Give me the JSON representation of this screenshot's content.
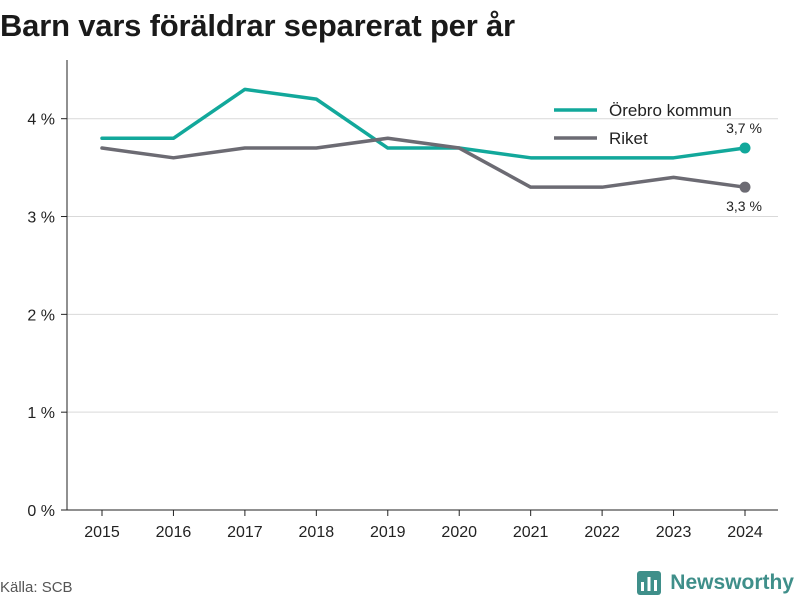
{
  "title": "Barn vars föräldrar separerat per år",
  "source": "Källa: SCB",
  "brand": "Newsworthy",
  "colors": {
    "orebro": "#12a89b",
    "riket": "#6c6b73",
    "grid": "#d9d9d9",
    "brand": "#3f8f8a"
  },
  "chart_data": {
    "type": "line",
    "title": "Barn vars föräldrar separerat per år",
    "xlabel": "",
    "ylabel": "",
    "categories": [
      "2015",
      "2016",
      "2017",
      "2018",
      "2019",
      "2020",
      "2021",
      "2022",
      "2023",
      "2024"
    ],
    "ylim": [
      0,
      4.6
    ],
    "yticks": [
      0,
      1,
      2,
      3,
      4
    ],
    "ytick_labels": [
      "0 %",
      "1 %",
      "2 %",
      "3 %",
      "4 %"
    ],
    "grid": true,
    "legend_position": "top-right",
    "series": [
      {
        "name": "Örebro kommun",
        "color": "#12a89b",
        "values": [
          3.8,
          3.8,
          4.3,
          4.2,
          3.7,
          3.7,
          3.6,
          3.6,
          3.6,
          3.7
        ],
        "end_label": "3,7 %"
      },
      {
        "name": "Riket",
        "color": "#6c6b73",
        "values": [
          3.7,
          3.6,
          3.7,
          3.7,
          3.8,
          3.7,
          3.3,
          3.3,
          3.4,
          3.3
        ],
        "end_label": "3,3 %"
      }
    ]
  }
}
